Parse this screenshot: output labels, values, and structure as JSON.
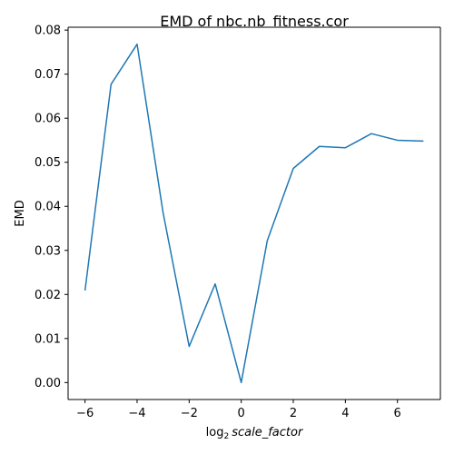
{
  "chart_data": {
    "type": "line",
    "title": "EMD of nbc.nb_fitness.cor",
    "xlabel": {
      "prefix": "log",
      "subscript": "2",
      "italic": "scale_factor"
    },
    "ylabel": "EMD",
    "xlim": [
      -6.65,
      7.65
    ],
    "ylim": [
      -0.00385,
      0.08065
    ],
    "x_ticks": [
      -6,
      -4,
      -2,
      0,
      2,
      4,
      6
    ],
    "x_tick_labels": [
      "−6",
      "−4",
      "−2",
      "0",
      "2",
      "4",
      "6"
    ],
    "y_ticks": [
      0.0,
      0.01,
      0.02,
      0.03,
      0.04,
      0.05,
      0.06,
      0.07,
      0.08
    ],
    "y_tick_labels": [
      "0.00",
      "0.01",
      "0.02",
      "0.03",
      "0.04",
      "0.05",
      "0.06",
      "0.07",
      "0.08"
    ],
    "grid": false,
    "series": [
      {
        "color": "#1f77b4",
        "x": [
          -6,
          -5,
          -4,
          -3,
          -2,
          -1,
          0,
          1,
          2,
          3,
          4,
          5,
          6,
          7
        ],
        "y": [
          0.0209,
          0.0677,
          0.0768,
          0.0385,
          0.0082,
          0.0224,
          0.0,
          0.0322,
          0.0486,
          0.0536,
          0.0533,
          0.0565,
          0.055,
          0.0548
        ]
      }
    ]
  }
}
